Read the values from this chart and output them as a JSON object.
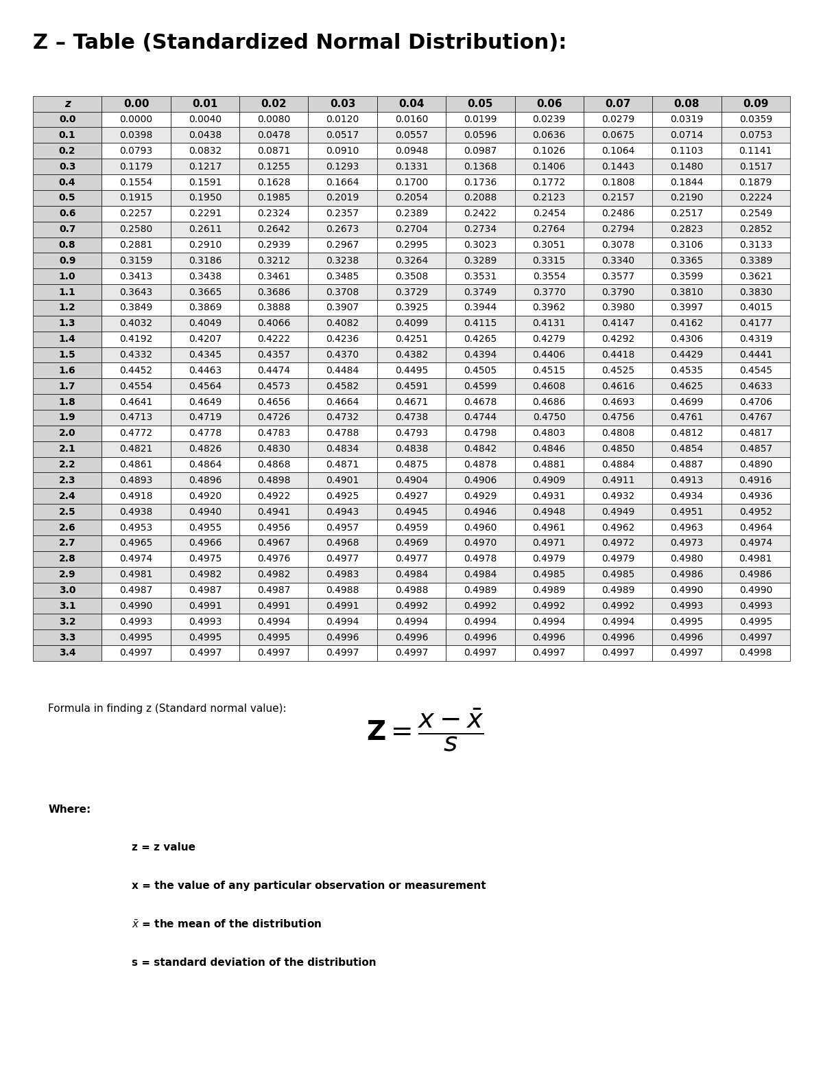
{
  "title": "Z – Table (Standardized Normal Distribution):",
  "col_headers": [
    "z",
    "0.00",
    "0.01",
    "0.02",
    "0.03",
    "0.04",
    "0.05",
    "0.06",
    "0.07",
    "0.08",
    "0.09"
  ],
  "row_labels": [
    "0.0",
    "0.1",
    "0.2",
    "0.3",
    "0.4",
    "0.5",
    "0.6",
    "0.7",
    "0.8",
    "0.9",
    "1.0",
    "1.1",
    "1.2",
    "1.3",
    "1.4",
    "1.5",
    "1.6",
    "1.7",
    "1.8",
    "1.9",
    "2.0",
    "2.1",
    "2.2",
    "2.3",
    "2.4",
    "2.5",
    "2.6",
    "2.7",
    "2.8",
    "2.9",
    "3.0",
    "3.1",
    "3.2",
    "3.3",
    "3.4"
  ],
  "table_data": [
    [
      "0.0000",
      "0.0040",
      "0.0080",
      "0.0120",
      "0.0160",
      "0.0199",
      "0.0239",
      "0.0279",
      "0.0319",
      "0.0359"
    ],
    [
      "0.0398",
      "0.0438",
      "0.0478",
      "0.0517",
      "0.0557",
      "0.0596",
      "0.0636",
      "0.0675",
      "0.0714",
      "0.0753"
    ],
    [
      "0.0793",
      "0.0832",
      "0.0871",
      "0.0910",
      "0.0948",
      "0.0987",
      "0.1026",
      "0.1064",
      "0.1103",
      "0.1141"
    ],
    [
      "0.1179",
      "0.1217",
      "0.1255",
      "0.1293",
      "0.1331",
      "0.1368",
      "0.1406",
      "0.1443",
      "0.1480",
      "0.1517"
    ],
    [
      "0.1554",
      "0.1591",
      "0.1628",
      "0.1664",
      "0.1700",
      "0.1736",
      "0.1772",
      "0.1808",
      "0.1844",
      "0.1879"
    ],
    [
      "0.1915",
      "0.1950",
      "0.1985",
      "0.2019",
      "0.2054",
      "0.2088",
      "0.2123",
      "0.2157",
      "0.2190",
      "0.2224"
    ],
    [
      "0.2257",
      "0.2291",
      "0.2324",
      "0.2357",
      "0.2389",
      "0.2422",
      "0.2454",
      "0.2486",
      "0.2517",
      "0.2549"
    ],
    [
      "0.2580",
      "0.2611",
      "0.2642",
      "0.2673",
      "0.2704",
      "0.2734",
      "0.2764",
      "0.2794",
      "0.2823",
      "0.2852"
    ],
    [
      "0.2881",
      "0.2910",
      "0.2939",
      "0.2967",
      "0.2995",
      "0.3023",
      "0.3051",
      "0.3078",
      "0.3106",
      "0.3133"
    ],
    [
      "0.3159",
      "0.3186",
      "0.3212",
      "0.3238",
      "0.3264",
      "0.3289",
      "0.3315",
      "0.3340",
      "0.3365",
      "0.3389"
    ],
    [
      "0.3413",
      "0.3438",
      "0.3461",
      "0.3485",
      "0.3508",
      "0.3531",
      "0.3554",
      "0.3577",
      "0.3599",
      "0.3621"
    ],
    [
      "0.3643",
      "0.3665",
      "0.3686",
      "0.3708",
      "0.3729",
      "0.3749",
      "0.3770",
      "0.3790",
      "0.3810",
      "0.3830"
    ],
    [
      "0.3849",
      "0.3869",
      "0.3888",
      "0.3907",
      "0.3925",
      "0.3944",
      "0.3962",
      "0.3980",
      "0.3997",
      "0.4015"
    ],
    [
      "0.4032",
      "0.4049",
      "0.4066",
      "0.4082",
      "0.4099",
      "0.4115",
      "0.4131",
      "0.4147",
      "0.4162",
      "0.4177"
    ],
    [
      "0.4192",
      "0.4207",
      "0.4222",
      "0.4236",
      "0.4251",
      "0.4265",
      "0.4279",
      "0.4292",
      "0.4306",
      "0.4319"
    ],
    [
      "0.4332",
      "0.4345",
      "0.4357",
      "0.4370",
      "0.4382",
      "0.4394",
      "0.4406",
      "0.4418",
      "0.4429",
      "0.4441"
    ],
    [
      "0.4452",
      "0.4463",
      "0.4474",
      "0.4484",
      "0.4495",
      "0.4505",
      "0.4515",
      "0.4525",
      "0.4535",
      "0.4545"
    ],
    [
      "0.4554",
      "0.4564",
      "0.4573",
      "0.4582",
      "0.4591",
      "0.4599",
      "0.4608",
      "0.4616",
      "0.4625",
      "0.4633"
    ],
    [
      "0.4641",
      "0.4649",
      "0.4656",
      "0.4664",
      "0.4671",
      "0.4678",
      "0.4686",
      "0.4693",
      "0.4699",
      "0.4706"
    ],
    [
      "0.4713",
      "0.4719",
      "0.4726",
      "0.4732",
      "0.4738",
      "0.4744",
      "0.4750",
      "0.4756",
      "0.4761",
      "0.4767"
    ],
    [
      "0.4772",
      "0.4778",
      "0.4783",
      "0.4788",
      "0.4793",
      "0.4798",
      "0.4803",
      "0.4808",
      "0.4812",
      "0.4817"
    ],
    [
      "0.4821",
      "0.4826",
      "0.4830",
      "0.4834",
      "0.4838",
      "0.4842",
      "0.4846",
      "0.4850",
      "0.4854",
      "0.4857"
    ],
    [
      "0.4861",
      "0.4864",
      "0.4868",
      "0.4871",
      "0.4875",
      "0.4878",
      "0.4881",
      "0.4884",
      "0.4887",
      "0.4890"
    ],
    [
      "0.4893",
      "0.4896",
      "0.4898",
      "0.4901",
      "0.4904",
      "0.4906",
      "0.4909",
      "0.4911",
      "0.4913",
      "0.4916"
    ],
    [
      "0.4918",
      "0.4920",
      "0.4922",
      "0.4925",
      "0.4927",
      "0.4929",
      "0.4931",
      "0.4932",
      "0.4934",
      "0.4936"
    ],
    [
      "0.4938",
      "0.4940",
      "0.4941",
      "0.4943",
      "0.4945",
      "0.4946",
      "0.4948",
      "0.4949",
      "0.4951",
      "0.4952"
    ],
    [
      "0.4953",
      "0.4955",
      "0.4956",
      "0.4957",
      "0.4959",
      "0.4960",
      "0.4961",
      "0.4962",
      "0.4963",
      "0.4964"
    ],
    [
      "0.4965",
      "0.4966",
      "0.4967",
      "0.4968",
      "0.4969",
      "0.4970",
      "0.4971",
      "0.4972",
      "0.4973",
      "0.4974"
    ],
    [
      "0.4974",
      "0.4975",
      "0.4976",
      "0.4977",
      "0.4977",
      "0.4978",
      "0.4979",
      "0.4979",
      "0.4980",
      "0.4981"
    ],
    [
      "0.4981",
      "0.4982",
      "0.4982",
      "0.4983",
      "0.4984",
      "0.4984",
      "0.4985",
      "0.4985",
      "0.4986",
      "0.4986"
    ],
    [
      "0.4987",
      "0.4987",
      "0.4987",
      "0.4988",
      "0.4988",
      "0.4989",
      "0.4989",
      "0.4989",
      "0.4990",
      "0.4990"
    ],
    [
      "0.4990",
      "0.4991",
      "0.4991",
      "0.4991",
      "0.4992",
      "0.4992",
      "0.4992",
      "0.4992",
      "0.4993",
      "0.4993"
    ],
    [
      "0.4993",
      "0.4993",
      "0.4994",
      "0.4994",
      "0.4994",
      "0.4994",
      "0.4994",
      "0.4994",
      "0.4995",
      "0.4995"
    ],
    [
      "0.4995",
      "0.4995",
      "0.4995",
      "0.4996",
      "0.4996",
      "0.4996",
      "0.4996",
      "0.4996",
      "0.4996",
      "0.4997"
    ],
    [
      "0.4997",
      "0.4997",
      "0.4997",
      "0.4997",
      "0.4997",
      "0.4997",
      "0.4997",
      "0.4997",
      "0.4997",
      "0.4998"
    ]
  ],
  "formula_label": "Formula in finding z (Standard normal value):",
  "where_label": "Where:",
  "where_items": [
    "z = z value",
    "x = the value of any particular observation or measurement",
    "x̅ = the mean of the distribution",
    "s = standard deviation of the distribution"
  ],
  "bg_color": "#ffffff",
  "header_bg": "#d3d3d3",
  "alt_row_bg": "#f0f0f0",
  "border_color": "#000000",
  "title_fontsize": 22,
  "header_fontsize": 11,
  "cell_fontsize": 10,
  "formula_fontsize": 11,
  "where_fontsize": 11
}
